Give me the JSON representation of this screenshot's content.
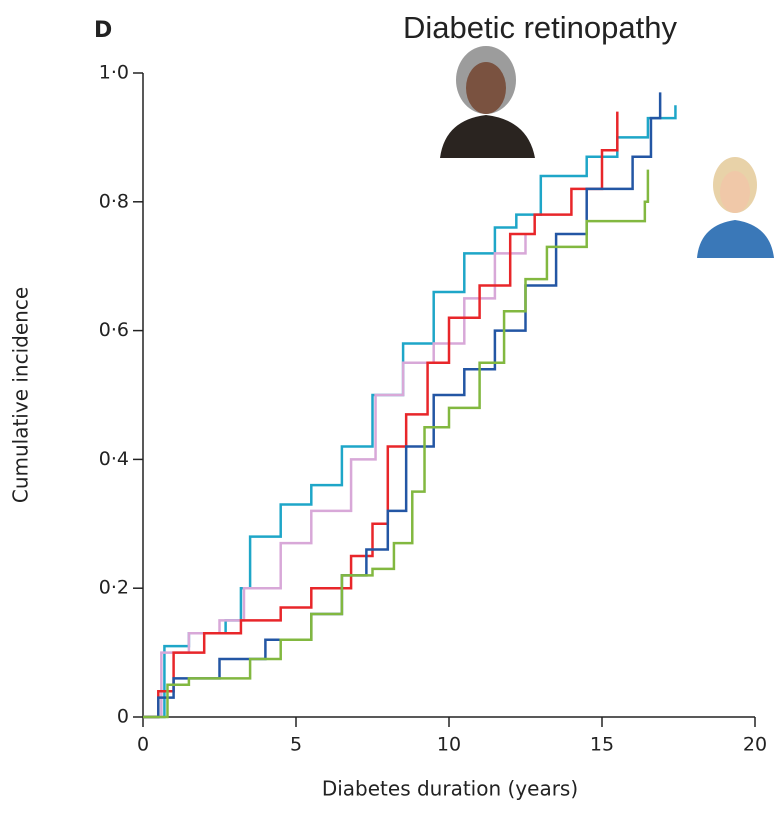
{
  "chart_data": {
    "type": "step",
    "panel_label": "D",
    "title": "Diabetic retinopathy",
    "x_label": "Diabetes duration (years)",
    "y_label": "Cumulative incidence",
    "xlim": [
      0,
      20
    ],
    "ylim": [
      0,
      1
    ],
    "xticks": [
      0,
      5,
      10,
      15,
      20
    ],
    "yticks": [
      0,
      {
        "value": 0.2,
        "label": "0·2"
      },
      {
        "value": 0.4,
        "label": "0·4"
      },
      {
        "value": 0.6,
        "label": "0·6"
      },
      {
        "value": 0.8,
        "label": "0·8"
      },
      {
        "value": 1,
        "label": "1·0"
      }
    ],
    "series": [
      {
        "color": "#1ea6c8",
        "x": [
          0,
          0.7,
          1.5,
          2.7,
          3.2,
          3.5,
          4.5,
          5.5,
          6.5,
          7.5,
          8.5,
          9.5,
          10.5,
          11.5,
          12.2,
          13,
          14.5,
          15.5,
          16.5,
          17.4
        ],
        "values": [
          0,
          0.11,
          0.13,
          0.15,
          0.2,
          0.28,
          0.33,
          0.36,
          0.42,
          0.5,
          0.58,
          0.66,
          0.72,
          0.76,
          0.78,
          0.84,
          0.87,
          0.9,
          0.93,
          0.95
        ]
      },
      {
        "color": "#d8a8d8",
        "x": [
          0,
          0.6,
          1.5,
          2.5,
          3.3,
          4.5,
          5.5,
          6.8,
          7.6,
          8.5,
          9.5,
          10.5,
          11.5,
          12.5
        ],
        "values": [
          0,
          0.1,
          0.13,
          0.15,
          0.2,
          0.27,
          0.32,
          0.4,
          0.5,
          0.55,
          0.58,
          0.65,
          0.72,
          0.75
        ]
      },
      {
        "color": "#e8262a",
        "x": [
          0,
          0.5,
          1,
          2,
          3.2,
          4.5,
          5.5,
          6.8,
          7.5,
          8,
          8.6,
          9.3,
          10,
          11,
          12,
          12.8,
          14,
          15,
          15.5
        ],
        "values": [
          0,
          0.04,
          0.1,
          0.13,
          0.15,
          0.17,
          0.2,
          0.25,
          0.3,
          0.42,
          0.47,
          0.55,
          0.62,
          0.67,
          0.75,
          0.78,
          0.82,
          0.88,
          0.94
        ]
      },
      {
        "color": "#2356a4",
        "x": [
          0,
          0.5,
          1,
          2.5,
          4,
          5.5,
          6.5,
          7.3,
          8,
          8.6,
          9.5,
          10.5,
          11.5,
          12.5,
          13.5,
          14.5,
          16,
          16.6,
          16.9
        ],
        "values": [
          0,
          0.03,
          0.06,
          0.09,
          0.12,
          0.16,
          0.22,
          0.26,
          0.32,
          0.42,
          0.5,
          0.54,
          0.6,
          0.67,
          0.75,
          0.82,
          0.87,
          0.93,
          0.97
        ]
      },
      {
        "color": "#82b840",
        "x": [
          0,
          0.8,
          1.5,
          3.5,
          4.5,
          5.5,
          6.5,
          7.5,
          8.2,
          8.8,
          9.2,
          10,
          11,
          11.8,
          12.5,
          13.2,
          14.5,
          16.4,
          16.5
        ],
        "values": [
          0,
          0.05,
          0.06,
          0.09,
          0.12,
          0.16,
          0.22,
          0.23,
          0.27,
          0.35,
          0.45,
          0.48,
          0.55,
          0.63,
          0.68,
          0.73,
          0.77,
          0.8,
          0.85
        ]
      }
    ]
  }
}
